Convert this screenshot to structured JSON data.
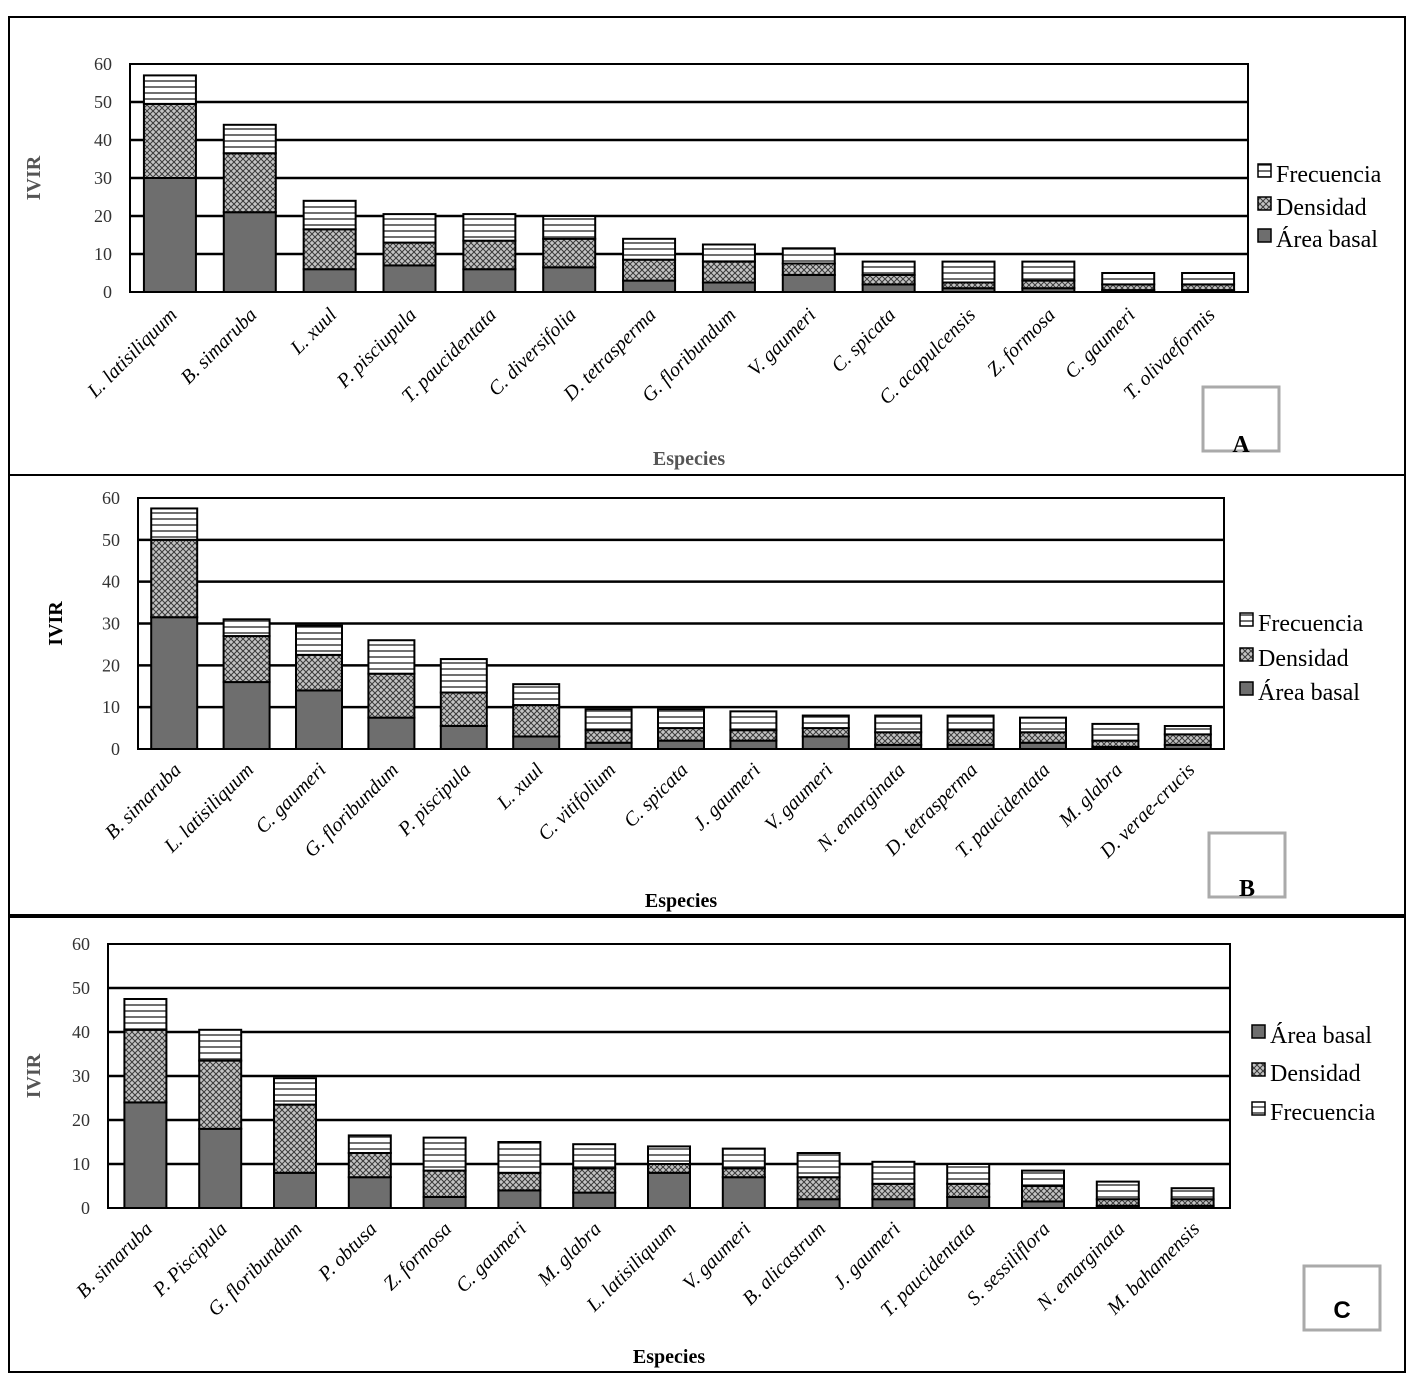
{
  "legend_labels": {
    "frecuencia": "Frecuencia",
    "densidad": "Densidad",
    "area_basal": "Área basal"
  },
  "chart_data": [
    {
      "type": "bar",
      "stacked": true,
      "panel_label": "A",
      "ylabel": "IVIR",
      "xlabel": "Especies",
      "ylim": [
        0,
        60
      ],
      "yticks": [
        0,
        10,
        20,
        30,
        40,
        50,
        60
      ],
      "grid": true,
      "legend_position": "right",
      "legend_order": [
        "Frecuencia",
        "Densidad",
        "Área basal"
      ],
      "categories": [
        "L. latisiliquum",
        "B. simaruba",
        "L. xuul",
        "P. pisciupula",
        "T. paucidentata",
        "C. diversifolia",
        "D. tetrasperma",
        "G. floribundum",
        "V. gaumeri",
        "C. spicata",
        "C. acapulcensis",
        "Z. formosa",
        "C. gaumeri",
        "T. olivaeformis"
      ],
      "series": [
        {
          "name": "Área basal",
          "values": [
            30,
            21,
            6,
            7,
            6,
            6.5,
            3,
            2.5,
            4.5,
            2,
            1,
            1,
            0.5,
            0.5
          ]
        },
        {
          "name": "Densidad",
          "values": [
            19.5,
            15.5,
            10.5,
            6,
            7.5,
            7.5,
            5.5,
            5.5,
            3,
            2.5,
            1.5,
            2,
            1.5,
            1.5
          ]
        },
        {
          "name": "Frecuencia",
          "values": [
            7.5,
            7.5,
            7.5,
            7.5,
            7,
            6,
            5.5,
            4.5,
            4,
            3.5,
            5.5,
            5,
            3,
            3
          ]
        }
      ]
    },
    {
      "type": "bar",
      "stacked": true,
      "panel_label": "B",
      "ylabel": "IVIR",
      "xlabel": "Especies",
      "ylim": [
        0,
        60
      ],
      "yticks": [
        0,
        10,
        20,
        30,
        40,
        50,
        60
      ],
      "grid": true,
      "legend_position": "right",
      "legend_order": [
        "Frecuencia",
        "Densidad",
        "Área basal"
      ],
      "categories": [
        "B. simaruba",
        "L. latisiliquum",
        "C. gaumeri",
        "G. floribundum",
        "P. piscipula",
        "L. xuul",
        "C. vitifolium",
        "C. spicata",
        "J. gaumeri",
        "V. gaumeri",
        "N. emarginata",
        "D. tetrasperma",
        "T. paucidentata",
        "M. glabra",
        "D. verae-crucis"
      ],
      "series": [
        {
          "name": "Área basal",
          "values": [
            31.5,
            16,
            14,
            7.5,
            5.5,
            3,
            1.5,
            2,
            2,
            3,
            1,
            1,
            1.5,
            0.5,
            1
          ]
        },
        {
          "name": "Densidad",
          "values": [
            18.5,
            11,
            8.5,
            10.5,
            8,
            7.5,
            3,
            3,
            2.5,
            2,
            3,
            3.5,
            2.5,
            1.5,
            2.5
          ]
        },
        {
          "name": "Frecuencia",
          "values": [
            7.5,
            4,
            7,
            8,
            8,
            5,
            5,
            4.5,
            4.5,
            3,
            4,
            3.5,
            3.5,
            4,
            2
          ]
        }
      ]
    },
    {
      "type": "bar",
      "stacked": true,
      "panel_label": "C",
      "ylabel": "IVIR",
      "xlabel": "Especies",
      "ylim": [
        0,
        60
      ],
      "yticks": [
        0,
        10,
        20,
        30,
        40,
        50,
        60
      ],
      "grid": true,
      "legend_position": "right",
      "legend_order": [
        "Área basal",
        "Densidad",
        "Frecuencia"
      ],
      "categories": [
        "B. simaruba",
        "P. Piscipula",
        "G. floribundum",
        "P. obtusa",
        "Z. formosa",
        "C. gaumeri",
        "M. glabra",
        "L. latisiliquum",
        "V. gaumeri",
        "B. alicastrum",
        "J. gaumeri",
        "T. paucidentata",
        "S. sessiliflora",
        "N. emarginata",
        "M. bahamensis"
      ],
      "series": [
        {
          "name": "Área basal",
          "values": [
            24,
            18,
            8,
            7,
            2.5,
            4,
            3.5,
            8,
            7,
            2,
            2,
            2.5,
            1.5,
            0.5,
            0.5
          ]
        },
        {
          "name": "Densidad",
          "values": [
            16.5,
            15.5,
            15.5,
            5.5,
            6,
            4,
            5.5,
            2,
            2,
            5,
            3.5,
            3,
            3.5,
            1.5,
            1.5
          ]
        },
        {
          "name": "Frecuencia",
          "values": [
            7,
            7,
            6,
            4,
            7.5,
            7,
            5.5,
            4,
            4.5,
            5.5,
            5,
            4.5,
            3.5,
            4,
            2.5
          ]
        }
      ]
    }
  ]
}
